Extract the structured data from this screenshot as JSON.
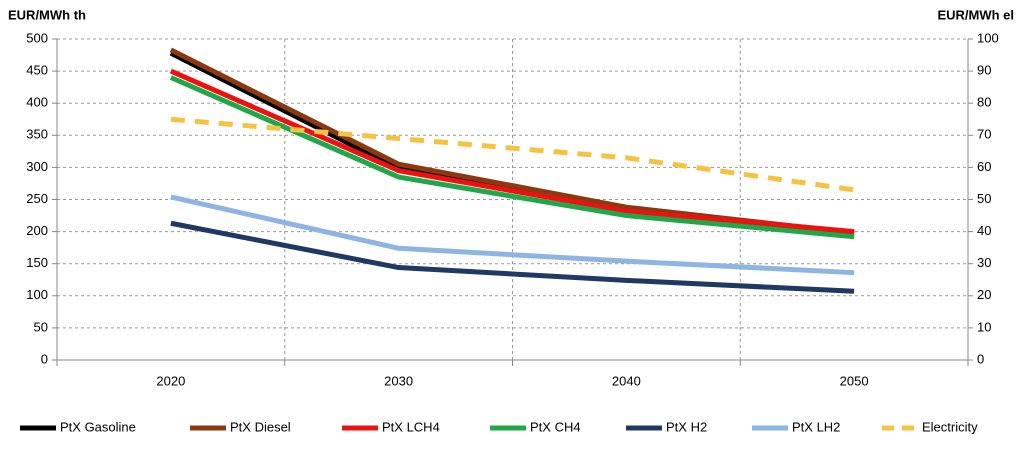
{
  "chart_data": {
    "type": "line",
    "ylabel": "EUR/MWh th",
    "y2label": "EUR/MWh el",
    "categories": [
      "2020",
      "2030",
      "2040",
      "2050"
    ],
    "ylim": [
      0,
      500
    ],
    "yticks": [
      0,
      50,
      100,
      150,
      200,
      250,
      300,
      350,
      400,
      450,
      500
    ],
    "y2lim": [
      0,
      100
    ],
    "y2ticks": [
      0,
      10,
      20,
      30,
      40,
      50,
      60,
      70,
      80,
      90,
      100
    ],
    "grid": true,
    "legend": "bottom",
    "series": [
      {
        "name": "PtX Gasoline",
        "color": "#000000",
        "values": [
          478,
          298,
          233,
          197
        ]
      },
      {
        "name": "PtX Diesel",
        "color": "#8b3a0f",
        "values": [
          483,
          305,
          238,
          198
        ]
      },
      {
        "name": "PtX LCH4",
        "color": "#ee1111",
        "values": [
          450,
          295,
          232,
          200
        ]
      },
      {
        "name": "PtX CH4",
        "color": "#1fa84a",
        "values": [
          440,
          285,
          225,
          192
        ]
      },
      {
        "name": "PtX H2",
        "color": "#1f3864",
        "values": [
          213,
          144,
          124,
          107
        ]
      },
      {
        "name": "PtX LH2",
        "color": "#8eb4e3",
        "values": [
          254,
          174,
          154,
          136
        ]
      },
      {
        "name": "Electricity",
        "color": "#f5c242",
        "values": [
          75,
          69,
          63,
          53
        ],
        "axis": "y2",
        "dashed": true
      }
    ]
  }
}
